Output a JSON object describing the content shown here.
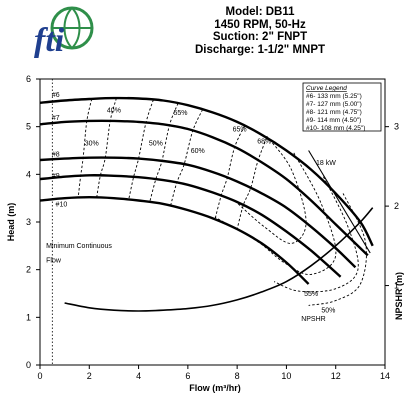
{
  "logo": {
    "text": "fti",
    "name": "fti-logo"
  },
  "header": {
    "model": "Model: DB11",
    "speed": "1450 RPM, 50-Hz",
    "suction": "Suction: 2\" FNPT",
    "discharge": "Discharge: 1-1/2\" MNPT"
  },
  "chart_data": {
    "type": "line",
    "title": "",
    "xlabel": "Flow (m³/hr)",
    "ylabel": "Head (m)",
    "y2label": "NPSHR (m)",
    "xlim": [
      0,
      14
    ],
    "ylim": [
      0,
      6
    ],
    "y2lim": [
      0,
      3.6
    ],
    "xticks": [
      0,
      2,
      4,
      6,
      8,
      10,
      12,
      14
    ],
    "yticks": [
      0,
      1,
      2,
      3,
      4,
      5,
      6
    ],
    "y2ticks": [
      1,
      2,
      3
    ],
    "grid": false,
    "legend": {
      "title": "Curve Legend",
      "position": "top-right",
      "entries": [
        "#6- 133 mm (5.25\")",
        "#7- 127 mm (5.00\")",
        "#8- 121 mm (4.75\")",
        "#9- 114 mm (4.50\")",
        "#10- 108 mm (4.25\")"
      ]
    },
    "series": [
      {
        "name": "#6",
        "x": [
          0,
          1,
          2,
          3,
          4,
          5,
          6,
          7,
          8,
          9,
          10,
          11,
          12,
          13,
          13.5
        ],
        "y": [
          5.5,
          5.55,
          5.58,
          5.6,
          5.59,
          5.55,
          5.45,
          5.3,
          5.1,
          4.83,
          4.5,
          4.1,
          3.6,
          3.0,
          2.5
        ]
      },
      {
        "name": "#7",
        "x": [
          0,
          1,
          2,
          3,
          4,
          5,
          6,
          7,
          8,
          9,
          10,
          11,
          12,
          13.3
        ],
        "y": [
          5.05,
          5.1,
          5.12,
          5.12,
          5.1,
          5.05,
          4.95,
          4.78,
          4.55,
          4.25,
          3.9,
          3.45,
          2.95,
          2.3
        ]
      },
      {
        "name": "#8",
        "x": [
          0,
          1,
          2,
          3,
          4,
          5,
          6,
          7,
          8,
          9,
          10,
          11,
          12,
          12.8
        ],
        "y": [
          4.3,
          4.33,
          4.35,
          4.35,
          4.33,
          4.28,
          4.2,
          4.05,
          3.85,
          3.6,
          3.3,
          2.9,
          2.45,
          2.05
        ]
      },
      {
        "name": "#9",
        "x": [
          0,
          1,
          2,
          3,
          4,
          5,
          6,
          7,
          8,
          9,
          10,
          11,
          12.2
        ],
        "y": [
          3.9,
          3.95,
          3.98,
          3.97,
          3.94,
          3.88,
          3.78,
          3.62,
          3.42,
          3.15,
          2.8,
          2.4,
          1.85
        ]
      },
      {
        "name": "#10",
        "x": [
          0,
          1,
          2,
          3,
          4,
          5,
          6,
          7,
          8,
          9,
          10,
          10.9
        ],
        "y": [
          3.45,
          3.5,
          3.52,
          3.5,
          3.45,
          3.38,
          3.25,
          3.08,
          2.85,
          2.55,
          2.15,
          1.7
        ]
      },
      {
        "name": "NPSHR",
        "x": [
          1,
          2,
          3,
          4,
          5,
          6,
          7,
          8,
          9,
          10,
          11,
          12,
          13,
          13.5
        ],
        "y": [
          0.78,
          0.72,
          0.69,
          0.68,
          0.69,
          0.71,
          0.75,
          0.82,
          0.92,
          1.05,
          1.25,
          1.5,
          1.8,
          1.98
        ]
      }
    ],
    "efficiency_labels": [
      {
        "label": "30%",
        "x": 2.1,
        "y": 4.6
      },
      {
        "label": "40%",
        "x": 3.0,
        "y": 5.3
      },
      {
        "label": "50%",
        "x": 4.7,
        "y": 4.6
      },
      {
        "label": "55%",
        "x": 5.7,
        "y": 5.25
      },
      {
        "label": "60%",
        "x": 6.4,
        "y": 4.45
      },
      {
        "label": "65%",
        "x": 8.1,
        "y": 4.9
      },
      {
        "label": "68%",
        "x": 9.1,
        "y": 4.65
      },
      {
        "label": "55%",
        "x": 11.0,
        "y": 1.45
      },
      {
        "label": "50%",
        "x": 11.7,
        "y": 1.1
      }
    ],
    "annotations": [
      {
        "text": "18 kW",
        "x": 11.2,
        "y": 4.2
      },
      {
        "text": "Minimum Continuous",
        "x": 0.25,
        "y": 2.45
      },
      {
        "text": "Flow",
        "x": 0.25,
        "y": 2.15
      },
      {
        "text": "NPSHR",
        "x": 10.6,
        "y": 0.92
      }
    ],
    "min_continuous_flow_x": 0.5
  }
}
